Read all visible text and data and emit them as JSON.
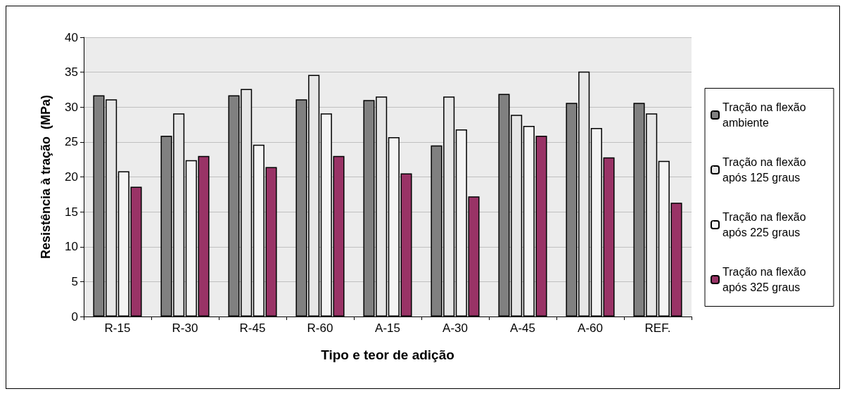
{
  "chart_data": {
    "type": "bar",
    "xlabel": "Tipo e teor de adição",
    "ylabel": "Resistência à tração  (MPa)",
    "categories": [
      "R-15",
      "R-30",
      "R-45",
      "R-60",
      "A-15",
      "A-30",
      "A-45",
      "A-60",
      "REF."
    ],
    "series": [
      {
        "name": "Tração na flexão ambiente",
        "color": "#808080",
        "values": [
          31.7,
          25.9,
          31.7,
          31.1,
          31.0,
          24.5,
          31.9,
          30.6,
          30.6
        ]
      },
      {
        "name": "Tração na flexão após 125 graus",
        "color": "#e6e6e6",
        "values": [
          31.1,
          29.1,
          32.6,
          34.6,
          31.5,
          31.5,
          28.9,
          35.1,
          29.1
        ]
      },
      {
        "name": "Tração na flexão após 225 graus",
        "color": "#f4f4f4",
        "values": [
          20.8,
          22.4,
          24.6,
          29.1,
          25.7,
          26.8,
          27.3,
          27.0,
          22.3
        ]
      },
      {
        "name": "Tração na flexão após 325 graus",
        "color": "#993366",
        "values": [
          18.6,
          23.0,
          21.4,
          23.0,
          20.5,
          17.2,
          25.9,
          22.8,
          16.3
        ]
      }
    ],
    "ylim": [
      0,
      40
    ],
    "yticks": [
      0,
      5,
      10,
      15,
      20,
      25,
      30,
      35,
      40
    ],
    "grid": "y",
    "legend": "right"
  }
}
